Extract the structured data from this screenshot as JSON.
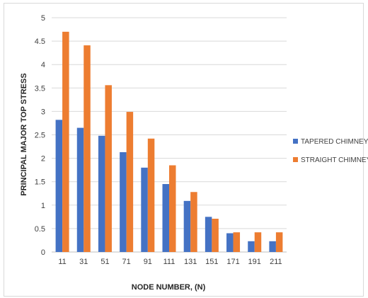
{
  "chart_data": {
    "type": "bar",
    "title": "",
    "xlabel": "NODE NUMBER, (N)",
    "ylabel": "PRINCIPAL MAJOR TOP STRESS",
    "categories": [
      "11",
      "31",
      "51",
      "71",
      "91",
      "111",
      "131",
      "151",
      "171",
      "191",
      "211"
    ],
    "ylim": [
      0,
      5
    ],
    "yticks": [
      "0",
      "0.5",
      "1",
      "1.5",
      "2",
      "2.5",
      "3",
      "3.5",
      "4",
      "4.5",
      "5"
    ],
    "grid": true,
    "legend_position": "right",
    "series": [
      {
        "name": "TAPERED CHIMNEY",
        "color": "#4472c4",
        "values": [
          2.82,
          2.65,
          2.48,
          2.13,
          1.8,
          1.45,
          1.09,
          0.75,
          0.4,
          0.23,
          0.23
        ]
      },
      {
        "name": "STRAIGHT CHIMNEY",
        "color": "#ed7d31",
        "values": [
          4.7,
          4.41,
          3.56,
          2.99,
          2.42,
          1.85,
          1.28,
          0.71,
          0.42,
          0.42,
          0.42
        ]
      }
    ]
  }
}
